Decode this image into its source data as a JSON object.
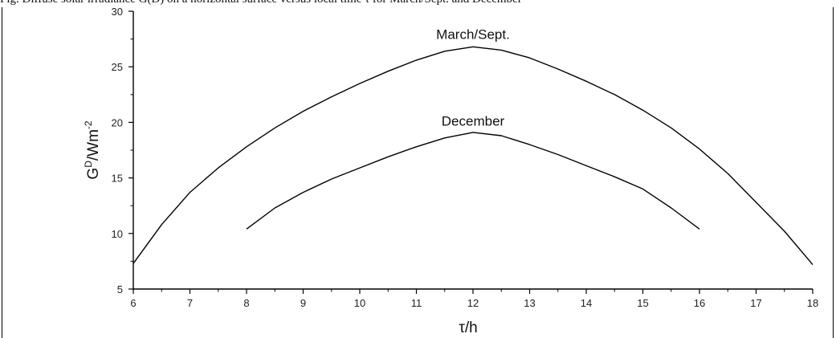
{
  "caption": "Fig. Diffuse solar irradiance G(D) on a horizontal surface versus local time τ for March/Sept. and December",
  "chart_data": {
    "type": "line",
    "title": "",
    "xlabel": "τ/h",
    "ylabel": "G",
    "ylabel_sup": "D",
    "ylabel_rest": "/Wm",
    "ylabel_exp": "-2",
    "xlim": [
      6,
      18
    ],
    "ylim": [
      5,
      30
    ],
    "xticks": [
      "6",
      "7",
      "8",
      "9",
      "10",
      "11",
      "12",
      "13",
      "14",
      "15",
      "16",
      "17",
      "18"
    ],
    "yticks": [
      "5",
      "10",
      "15",
      "20",
      "25",
      "30"
    ],
    "grid": false,
    "legend": "none",
    "series": [
      {
        "name": "March/Sept.",
        "color": "#000000",
        "x": [
          6,
          6.5,
          7,
          7.5,
          8,
          8.5,
          9,
          9.5,
          10,
          10.5,
          11,
          11.5,
          12,
          12.5,
          13,
          13.5,
          14,
          14.5,
          15,
          15.5,
          16,
          16.5,
          17,
          17.5,
          18
        ],
        "y": [
          7.3,
          10.8,
          13.7,
          15.9,
          17.8,
          19.5,
          21.0,
          22.3,
          23.5,
          24.6,
          25.6,
          26.4,
          26.8,
          26.5,
          25.8,
          24.8,
          23.7,
          22.5,
          21.1,
          19.5,
          17.6,
          15.4,
          12.8,
          10.2,
          7.2
        ]
      },
      {
        "name": "December",
        "color": "#000000",
        "x": [
          8,
          8.5,
          9,
          9.5,
          10,
          10.5,
          11,
          11.5,
          12,
          12.5,
          13,
          13.5,
          14,
          14.5,
          15,
          15.5,
          16
        ],
        "y": [
          10.4,
          12.3,
          13.7,
          14.9,
          15.9,
          16.9,
          17.8,
          18.6,
          19.1,
          18.8,
          18.0,
          17.1,
          16.1,
          15.1,
          14.0,
          12.3,
          10.4
        ]
      }
    ],
    "series_labels": [
      {
        "text": "March/Sept.",
        "x": 12,
        "y": 27.5
      },
      {
        "text": "December",
        "x": 12,
        "y": 19.7
      }
    ]
  }
}
